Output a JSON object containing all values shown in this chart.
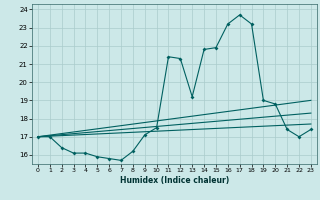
{
  "xlabel": "Humidex (Indice chaleur)",
  "bg_color": "#cce8e8",
  "grid_color": "#aacccc",
  "line_color": "#006060",
  "xlim": [
    -0.5,
    23.5
  ],
  "ylim": [
    15.5,
    24.3
  ],
  "yticks": [
    16,
    17,
    18,
    19,
    20,
    21,
    22,
    23,
    24
  ],
  "xticks": [
    0,
    1,
    2,
    3,
    4,
    5,
    6,
    7,
    8,
    9,
    10,
    11,
    12,
    13,
    14,
    15,
    16,
    17,
    18,
    19,
    20,
    21,
    22,
    23
  ],
  "series": {
    "line1": {
      "x": [
        0,
        1,
        2,
        3,
        4,
        5,
        6,
        7,
        8,
        9,
        10,
        11,
        12,
        13,
        14,
        15,
        16,
        17,
        18,
        19,
        20,
        21,
        22,
        23
      ],
      "y": [
        17.0,
        17.0,
        16.4,
        16.1,
        16.1,
        15.9,
        15.8,
        15.7,
        16.2,
        17.1,
        17.5,
        21.4,
        21.3,
        19.2,
        21.8,
        21.9,
        23.2,
        23.7,
        23.2,
        19.0,
        18.8,
        17.4,
        17.0,
        17.4
      ]
    },
    "line2": {
      "x": [
        0,
        23
      ],
      "y": [
        17.0,
        19.0
      ]
    },
    "line3": {
      "x": [
        0,
        23
      ],
      "y": [
        17.0,
        18.3
      ]
    },
    "line4": {
      "x": [
        0,
        23
      ],
      "y": [
        17.0,
        17.7
      ]
    }
  }
}
